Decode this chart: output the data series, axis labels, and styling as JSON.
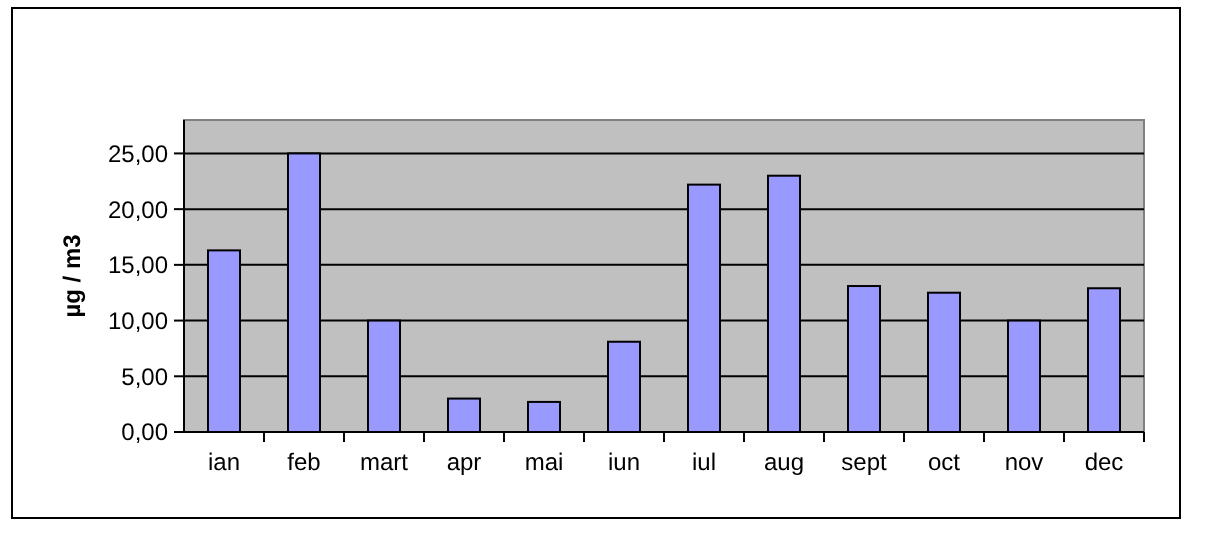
{
  "chart_data": {
    "type": "bar",
    "categories": [
      "ian",
      "feb",
      "mart",
      "apr",
      "mai",
      "iun",
      "iul",
      "aug",
      "sept",
      "oct",
      "nov",
      "dec"
    ],
    "values": [
      16.3,
      25.0,
      10.0,
      3.0,
      2.7,
      8.1,
      22.2,
      23.0,
      13.1,
      12.5,
      10.0,
      12.9
    ],
    "color": "#9999ff",
    "ylabel": "µg / m3",
    "ylim": [
      0,
      28
    ],
    "yticks": [
      {
        "value": 0,
        "label": "0,00"
      },
      {
        "value": 5,
        "label": "5,00"
      },
      {
        "value": 10,
        "label": "10,00"
      },
      {
        "value": 15,
        "label": "15,00"
      },
      {
        "value": 20,
        "label": "20,00"
      },
      {
        "value": 25,
        "label": "25,00"
      }
    ],
    "grid": "y"
  }
}
